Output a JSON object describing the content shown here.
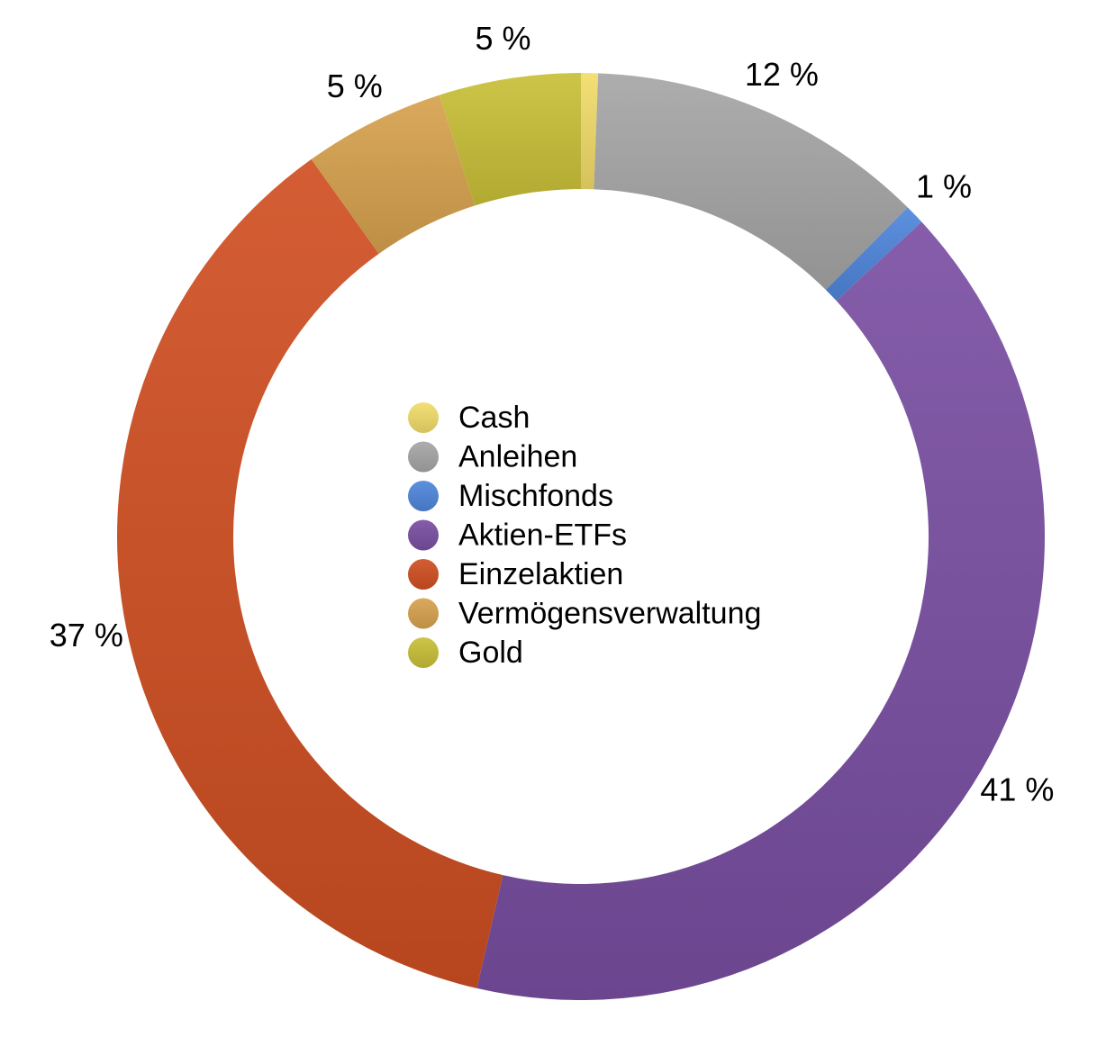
{
  "chart_data": {
    "type": "pie",
    "variant": "donut",
    "title": "",
    "legend_position": "center",
    "unit_suffix": " %",
    "series": [
      {
        "name": "Cash",
        "value": 0.6,
        "label": "",
        "color": "#f2dc6a"
      },
      {
        "name": "Anleihen",
        "value": 12,
        "label": "12 %",
        "color": "#a6a6a6"
      },
      {
        "name": "Mischfonds",
        "value": 0.7,
        "label": "1 %",
        "color": "#4f86db"
      },
      {
        "name": "Aktien-ETFs",
        "value": 41,
        "label": "41 %",
        "color": "#7a4fa3"
      },
      {
        "name": "Einzelaktien",
        "value": 37,
        "label": "37 %",
        "color": "#d04f22"
      },
      {
        "name": "Vermögensverwaltung",
        "value": 5,
        "label": "5 %",
        "color": "#d7a24e"
      },
      {
        "name": "Gold",
        "value": 5,
        "label": "5 %",
        "color": "#c9c038"
      }
    ]
  }
}
